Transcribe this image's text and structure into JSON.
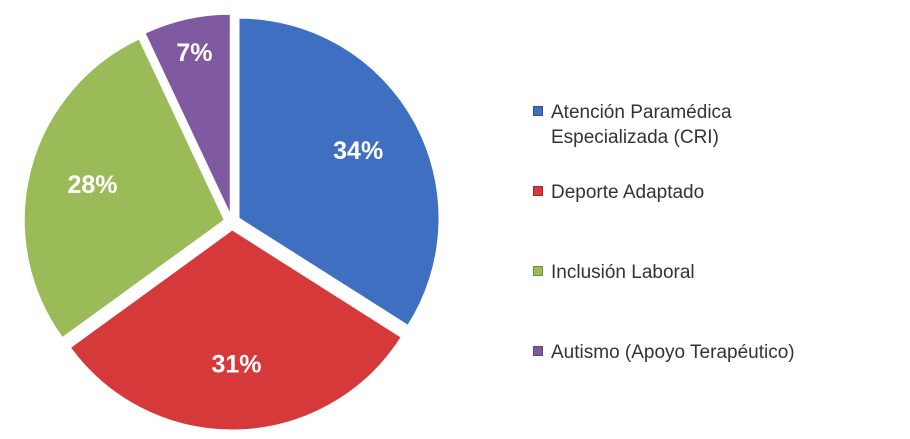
{
  "chart_data": {
    "type": "pie",
    "categories": [
      "Atención Paramédica Especializada (CRI)",
      "Deporte Adaptado",
      "Inclusión Laboral",
      "Autismo (Apoyo Terapéutico)"
    ],
    "values": [
      34,
      31,
      28,
      7
    ],
    "value_labels": [
      "34%",
      "31%",
      "28%",
      "7%"
    ],
    "colors": [
      "#3f6fc0",
      "#d6393a",
      "#9bbb59",
      "#7f5aa2"
    ],
    "legend": "right"
  }
}
